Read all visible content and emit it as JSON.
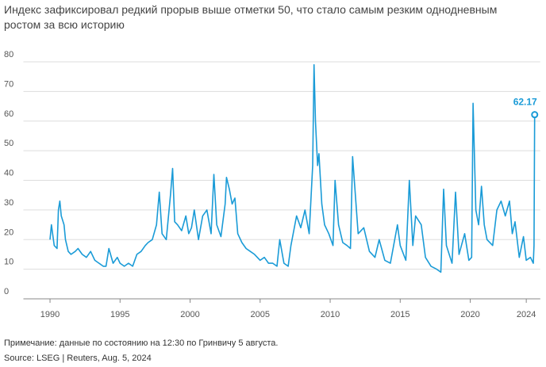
{
  "chart_data": {
    "type": "line",
    "title": "Индекс зафиксировал редкий прорыв выше отметки 50, что стало самым резким однодневным",
    "subtitle": "ростом за всю историю",
    "note": "Примечание: данные по состоянию на 12:30 по Гринвичу 5 августа.",
    "source": "Source: LSEG | Reuters, Aug. 5, 2024",
    "x": [
      1990.0,
      1990.1,
      1990.3,
      1990.5,
      1990.6,
      1990.7,
      1990.8,
      1991.0,
      1991.1,
      1991.3,
      1991.5,
      1991.8,
      1992.0,
      1992.3,
      1992.6,
      1992.9,
      1993.2,
      1993.5,
      1993.8,
      1994.0,
      1994.2,
      1994.5,
      1994.8,
      1995.0,
      1995.3,
      1995.6,
      1995.9,
      1996.2,
      1996.5,
      1996.8,
      1997.0,
      1997.3,
      1997.6,
      1997.8,
      1998.0,
      1998.3,
      1998.6,
      1998.75,
      1998.9,
      1999.1,
      1999.4,
      1999.7,
      1999.9,
      2000.1,
      2000.3,
      2000.6,
      2000.9,
      2001.2,
      2001.5,
      2001.7,
      2001.9,
      2002.2,
      2002.5,
      2002.6,
      2002.8,
      2003.0,
      2003.2,
      2003.4,
      2003.7,
      2004.0,
      2004.3,
      2004.6,
      2005.0,
      2005.3,
      2005.6,
      2005.9,
      2006.2,
      2006.4,
      2006.7,
      2007.0,
      2007.2,
      2007.6,
      2007.9,
      2008.2,
      2008.5,
      2008.75,
      2008.85,
      2008.95,
      2009.1,
      2009.2,
      2009.4,
      2009.6,
      2009.9,
      2010.2,
      2010.35,
      2010.6,
      2010.9,
      2011.2,
      2011.45,
      2011.6,
      2011.8,
      2012.0,
      2012.4,
      2012.8,
      2013.2,
      2013.5,
      2013.9,
      2014.3,
      2014.8,
      2015.0,
      2015.4,
      2015.65,
      2015.9,
      2016.1,
      2016.5,
      2016.8,
      2017.2,
      2017.6,
      2017.9,
      2018.1,
      2018.3,
      2018.7,
      2018.95,
      2019.2,
      2019.6,
      2019.9,
      2020.1,
      2020.2,
      2020.4,
      2020.6,
      2020.8,
      2021.0,
      2021.2,
      2021.6,
      2021.9,
      2022.2,
      2022.5,
      2022.8,
      2023.0,
      2023.2,
      2023.5,
      2023.8,
      2024.0,
      2024.3,
      2024.5,
      2024.55,
      2024.6
    ],
    "series": [
      {
        "color": "#1a9bd7",
        "values": [
          20,
          25,
          18,
          17,
          30,
          33,
          28,
          25,
          20,
          16,
          15,
          16,
          17,
          15,
          14,
          16,
          13,
          12,
          11,
          11,
          17,
          12,
          14,
          12,
          11,
          12,
          11,
          15,
          16,
          18,
          19,
          20,
          25,
          36,
          22,
          20,
          35,
          44,
          26,
          25,
          23,
          28,
          22,
          24,
          30,
          20,
          28,
          30,
          22,
          42,
          25,
          21,
          32,
          41,
          37,
          32,
          34,
          22,
          19,
          17,
          16,
          15,
          13,
          14,
          12,
          12,
          11,
          20,
          12,
          11,
          18,
          28,
          24,
          30,
          22,
          45,
          79,
          60,
          45,
          49,
          32,
          25,
          22,
          18,
          40,
          25,
          19,
          18,
          17,
          48,
          35,
          22,
          24,
          16,
          14,
          20,
          13,
          12,
          25,
          18,
          13,
          40,
          18,
          28,
          25,
          14,
          11,
          10,
          9,
          37,
          18,
          12,
          36,
          15,
          22,
          13,
          14,
          66,
          30,
          25,
          38,
          25,
          20,
          18,
          30,
          33,
          28,
          33,
          22,
          26,
          14,
          21,
          13,
          14,
          12,
          18,
          62.17
        ]
      }
    ],
    "xlim": [
      1988.1,
      2025
    ],
    "xticks": [
      1990,
      1995,
      2000,
      2005,
      2010,
      2015,
      2020,
      2024
    ],
    "ylim": [
      0,
      80
    ],
    "yticks": [
      0,
      10,
      20,
      30,
      40,
      50,
      60,
      70,
      80
    ],
    "grid": true
  }
}
